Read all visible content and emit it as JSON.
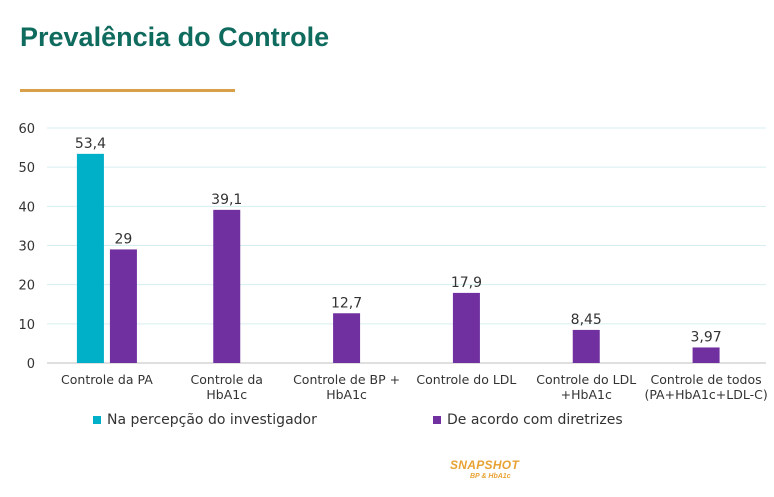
{
  "title": "Prevalência do Controle",
  "chart_data": {
    "type": "bar",
    "categories": [
      [
        "Controle da PA"
      ],
      [
        "Controle da",
        "HbA1c"
      ],
      [
        "Controle de BP +",
        "HbA1c"
      ],
      [
        "Controle do LDL"
      ],
      [
        "Controle do LDL",
        "+HbA1c"
      ],
      [
        "Controle de todos",
        "(PA+HbA1c+LDL-C)"
      ]
    ],
    "series": [
      {
        "name": "Na percepção do investigador",
        "color": "#00b0c8",
        "values": [
          53.4,
          null,
          null,
          null,
          null,
          null
        ],
        "labels": [
          "53,4",
          "",
          "",
          "",
          "",
          ""
        ]
      },
      {
        "name": "De acordo com diretrizes",
        "color": "#7030a0",
        "values": [
          29,
          39.1,
          12.7,
          17.9,
          8.45,
          3.97
        ],
        "labels": [
          "29",
          "39,1",
          "12,7",
          "17,9",
          "8,45",
          "3,97"
        ]
      }
    ],
    "yticks": [
      "0",
      "10",
      "20",
      "30",
      "40",
      "50",
      "60"
    ],
    "ylim": [
      0,
      60
    ],
    "grid": true,
    "legend": "bottom"
  },
  "logo": {
    "main": "SNAPSHOT",
    "sub": "BP & HbA1c"
  }
}
